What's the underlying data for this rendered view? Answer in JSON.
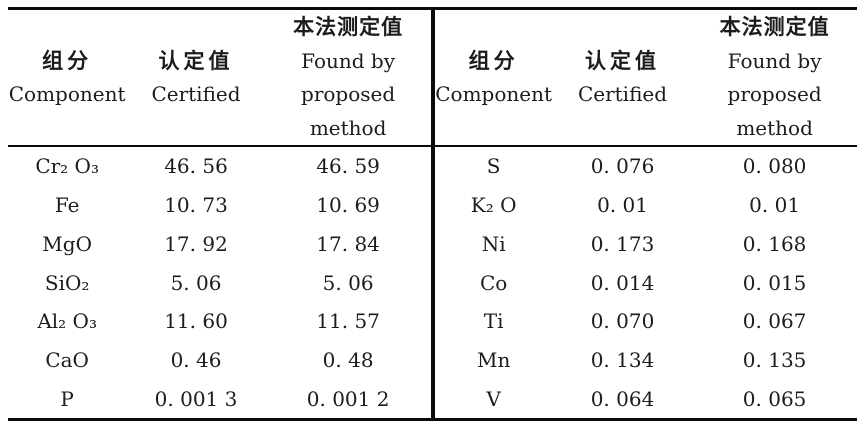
{
  "table": {
    "title_semantic": "Comparison of certified values and values found by proposed method",
    "header": {
      "component_zh": "组分",
      "component_en": "Component",
      "certified_zh": "认定值",
      "certified_en": "Certified",
      "found_zh": "本法测定值",
      "found_line1": "Found by",
      "found_line2": "proposed",
      "found_line3": "method"
    },
    "left_rows": [
      {
        "component": "Cr₂ O₃",
        "certified": "46. 56",
        "found": "46. 59"
      },
      {
        "component": "Fe",
        "certified": "10. 73",
        "found": "10. 69"
      },
      {
        "component": "MgO",
        "certified": "17. 92",
        "found": "17. 84"
      },
      {
        "component": "SiO₂",
        "certified": "5. 06",
        "found": "5. 06"
      },
      {
        "component": "Al₂ O₃",
        "certified": "11. 60",
        "found": "11. 57"
      },
      {
        "component": "CaO",
        "certified": "0. 46",
        "found": "0. 48"
      },
      {
        "component": "P",
        "certified": "0. 001 3",
        "found": "0. 001 2"
      }
    ],
    "right_rows": [
      {
        "component": "S",
        "certified": "0. 076",
        "found": "0. 080"
      },
      {
        "component": "K₂ O",
        "certified": "0. 01",
        "found": "0. 01"
      },
      {
        "component": "Ni",
        "certified": "0. 173",
        "found": "0. 168"
      },
      {
        "component": "Co",
        "certified": "0. 014",
        "found": "0. 015"
      },
      {
        "component": "Ti",
        "certified": "0. 070",
        "found": "0. 067"
      },
      {
        "component": "Mn",
        "certified": "0. 134",
        "found": "0. 135"
      },
      {
        "component": "V",
        "certified": "0. 064",
        "found": "0. 065"
      }
    ],
    "colors": {
      "text": "#1c1c1c",
      "rule": "#0a0a0a",
      "background": "#ffffff"
    }
  }
}
